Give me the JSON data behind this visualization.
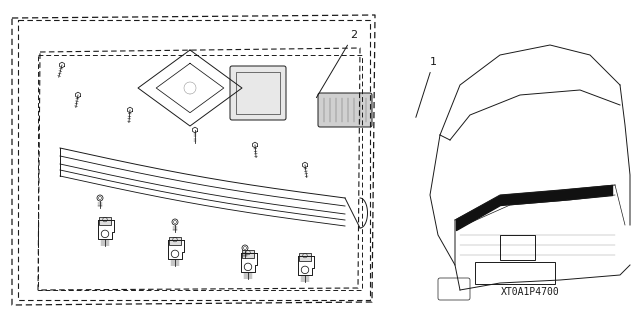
{
  "bg_color": "#ffffff",
  "line_color": "#1a1a1a",
  "part_code": "XT0A1P4700",
  "font_size_label": 8,
  "font_size_code": 7
}
